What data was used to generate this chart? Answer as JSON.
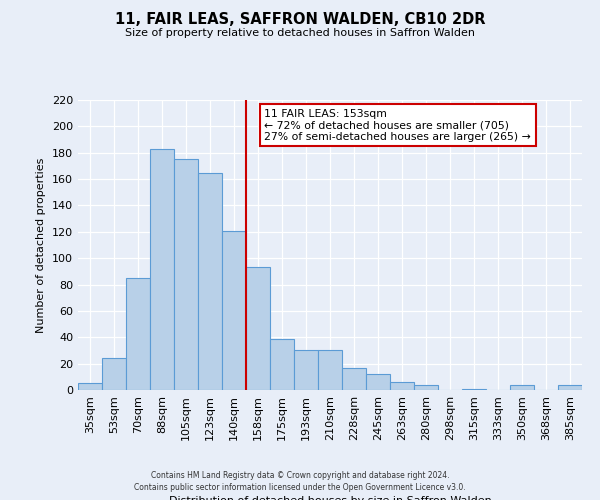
{
  "title": "11, FAIR LEAS, SAFFRON WALDEN, CB10 2DR",
  "subtitle": "Size of property relative to detached houses in Saffron Walden",
  "xlabel": "Distribution of detached houses by size in Saffron Walden",
  "ylabel": "Number of detached properties",
  "categories": [
    "35sqm",
    "53sqm",
    "70sqm",
    "88sqm",
    "105sqm",
    "123sqm",
    "140sqm",
    "158sqm",
    "175sqm",
    "193sqm",
    "210sqm",
    "228sqm",
    "245sqm",
    "263sqm",
    "280sqm",
    "298sqm",
    "315sqm",
    "333sqm",
    "350sqm",
    "368sqm",
    "385sqm"
  ],
  "values": [
    5,
    24,
    85,
    183,
    175,
    165,
    121,
    93,
    39,
    30,
    30,
    17,
    12,
    6,
    4,
    0,
    1,
    0,
    4,
    0,
    4
  ],
  "bar_color": "#b8d0e8",
  "bar_edge_color": "#5b9bd5",
  "marker_index": 7,
  "marker_color": "#cc0000",
  "annotation_title": "11 FAIR LEAS: 153sqm",
  "annotation_line1": "← 72% of detached houses are smaller (705)",
  "annotation_line2": "27% of semi-detached houses are larger (265) →",
  "annotation_box_color": "#ffffff",
  "annotation_box_edge": "#cc0000",
  "footer_line1": "Contains HM Land Registry data © Crown copyright and database right 2024.",
  "footer_line2": "Contains public sector information licensed under the Open Government Licence v3.0.",
  "ylim": [
    0,
    220
  ],
  "yticks": [
    0,
    20,
    40,
    60,
    80,
    100,
    120,
    140,
    160,
    180,
    200,
    220
  ],
  "background_color": "#e8eef8"
}
